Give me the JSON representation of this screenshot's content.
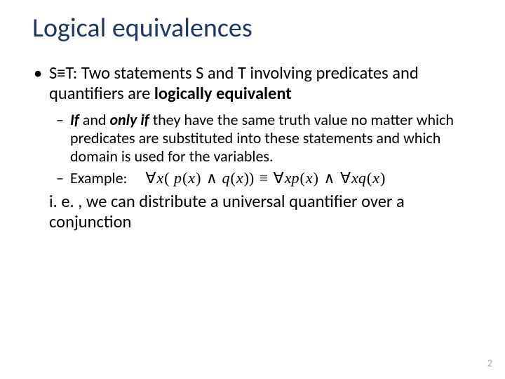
{
  "colors": {
    "title": "#1f3864",
    "body": "#000000",
    "page_number": "#a6a6a6",
    "background": "#ffffff"
  },
  "typography": {
    "title_fontsize": 38,
    "level1_fontsize": 24.5,
    "level2_fontsize": 22,
    "page_number_fontsize": 14,
    "font_family": "Calibri"
  },
  "title": "Logical equivalences",
  "bullet1_pre": "S≡T: Two statements S and T involving predicates and quantifiers are ",
  "bullet1_bold": "logically equivalent",
  "sub1_if": "If",
  "sub1_mid": " and ",
  "sub1_onlyif": "only if",
  "sub1_rest": " they have the same truth value no matter which predicates are substituted into these statements and which domain is used for the variables.",
  "sub2_label": "Example:",
  "formula": "∀x( p(x) ∧ q(x)) ≡ ∀xp(x) ∧ ∀xq(x)",
  "conclusion": "   i. e. , we can distribute a universal quantifier over a conjunction",
  "page_number": "2"
}
